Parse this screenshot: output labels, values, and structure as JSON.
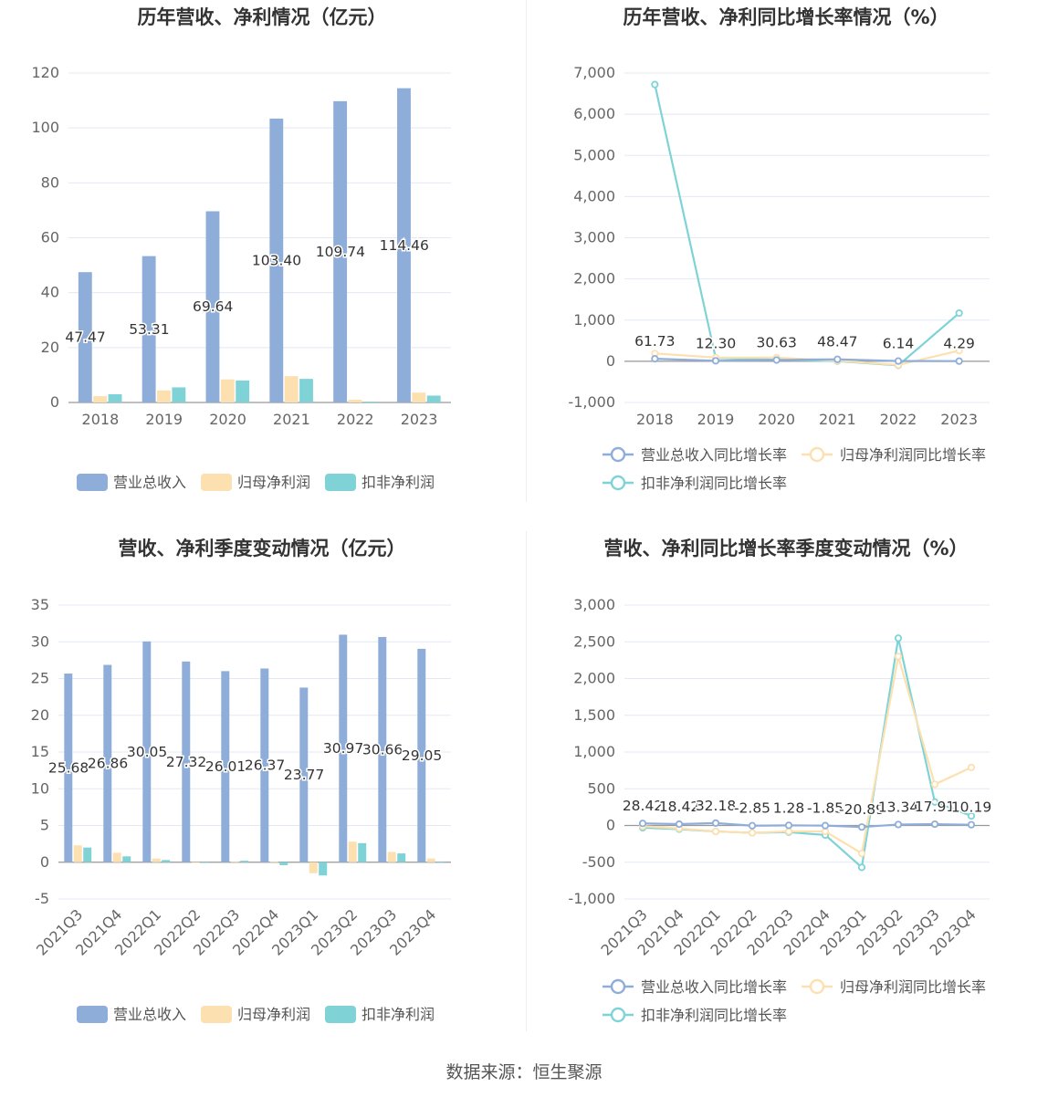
{
  "colors": {
    "revenue": "#8eadd9",
    "net_profit": "#fde0b0",
    "deducted_profit": "#7fd3d6",
    "grid": "#e3e8f3",
    "axis": "#999999"
  },
  "footer": {
    "source": "数据来源：恒生聚源"
  },
  "chart_data": [
    {
      "id": "annual_values",
      "type": "bar",
      "title": "历年营收、净利情况（亿元）",
      "categories": [
        "2018",
        "2019",
        "2020",
        "2021",
        "2022",
        "2023"
      ],
      "series": [
        {
          "name": "营业总收入",
          "values": [
            47.47,
            53.31,
            69.64,
            103.4,
            109.74,
            114.46
          ]
        },
        {
          "name": "归母净利润",
          "values": [
            2.3,
            4.4,
            8.4,
            9.6,
            1.0,
            3.6
          ]
        },
        {
          "name": "扣非净利润",
          "values": [
            3.0,
            5.5,
            8.0,
            8.6,
            0.3,
            2.5
          ]
        }
      ],
      "data_labels": [
        "47.47",
        "53.31",
        "69.64",
        "103.40",
        "109.74",
        "114.46"
      ],
      "ylim": [
        0,
        120
      ],
      "yticks": [
        0,
        20,
        40,
        60,
        80,
        100,
        120
      ],
      "grid": true,
      "legend": "bottom"
    },
    {
      "id": "annual_growth",
      "type": "line",
      "title": "历年营收、净利同比增长率情况（%）",
      "categories": [
        "2018",
        "2019",
        "2020",
        "2021",
        "2022",
        "2023"
      ],
      "series": [
        {
          "name": "营业总收入同比增长率",
          "values": [
            61.73,
            12.3,
            30.63,
            48.47,
            6.14,
            4.29
          ]
        },
        {
          "name": "归母净利润同比增长率",
          "values": [
            190,
            90,
            90,
            15,
            -90,
            260
          ]
        },
        {
          "name": "扣非净利润同比增长率",
          "values": [
            6720,
            80,
            40,
            5,
            -100,
            1170
          ]
        }
      ],
      "data_labels": [
        "61.73",
        "12.30",
        "30.63",
        "48.47",
        "6.14",
        "4.29"
      ],
      "ylim": [
        -1000,
        7000
      ],
      "yticks": [
        -1000,
        0,
        1000,
        2000,
        3000,
        4000,
        5000,
        6000,
        7000
      ],
      "ytick_labels": [
        "-1,000",
        "0",
        "1,000",
        "2,000",
        "3,000",
        "4,000",
        "5,000",
        "6,000",
        "7,000"
      ],
      "grid": true,
      "legend": "bottom"
    },
    {
      "id": "quarterly_values",
      "type": "bar",
      "title": "营收、净利季度变动情况（亿元）",
      "categories": [
        "2021Q3",
        "2021Q4",
        "2022Q1",
        "2022Q2",
        "2022Q3",
        "2022Q4",
        "2023Q1",
        "2023Q2",
        "2023Q3",
        "2023Q4"
      ],
      "series": [
        {
          "name": "营业总收入",
          "values": [
            25.68,
            26.86,
            30.05,
            27.32,
            26.01,
            26.37,
            23.77,
            30.97,
            30.66,
            29.05
          ]
        },
        {
          "name": "归母净利润",
          "values": [
            2.3,
            1.3,
            0.5,
            -0.1,
            0.1,
            0.1,
            -1.5,
            2.8,
            1.4,
            0.5
          ]
        },
        {
          "name": "扣非净利润",
          "values": [
            2.0,
            0.8,
            0.3,
            -0.1,
            0.2,
            -0.4,
            -1.8,
            2.6,
            1.2,
            0.1
          ]
        }
      ],
      "data_labels": [
        "25.68",
        "26.86",
        "30.05",
        "27.32",
        "26.01",
        "26.37",
        "23.77",
        "30.97",
        "30.66",
        "29.05"
      ],
      "ylim": [
        -5,
        35
      ],
      "yticks": [
        -5,
        0,
        5,
        10,
        15,
        20,
        25,
        30,
        35
      ],
      "grid": true,
      "legend": "bottom"
    },
    {
      "id": "quarterly_growth",
      "type": "line",
      "title": "营收、净利同比增长率季度变动情况（%）",
      "categories": [
        "2021Q3",
        "2021Q4",
        "2022Q1",
        "2022Q2",
        "2022Q3",
        "2022Q4",
        "2023Q1",
        "2023Q2",
        "2023Q3",
        "2023Q4"
      ],
      "series": [
        {
          "name": "营业总收入同比增长率",
          "values": [
            28.42,
            18.42,
            32.18,
            -2.85,
            1.28,
            -1.85,
            -20.89,
            13.34,
            17.91,
            10.19
          ]
        },
        {
          "name": "归母净利润同比增长率",
          "values": [
            -10,
            -40,
            -80,
            -100,
            -80,
            -80,
            -380,
            2300,
            560,
            790
          ]
        },
        {
          "name": "扣非净利润同比增长率",
          "values": [
            -30,
            -50,
            -80,
            -100,
            -90,
            -130,
            -570,
            2550,
            320,
            130
          ]
        }
      ],
      "data_labels": [
        "28.42",
        "18.42",
        "32.18",
        "-2.85",
        "1.28",
        "-1.85",
        "-20.89",
        "13.34",
        "17.91",
        "10.19"
      ],
      "ylim": [
        -1000,
        3000
      ],
      "yticks": [
        -1000,
        -500,
        0,
        500,
        1000,
        1500,
        2000,
        2500,
        3000
      ],
      "ytick_labels": [
        "-1,000",
        "-500",
        "0",
        "500",
        "1,000",
        "1,500",
        "2,000",
        "2,500",
        "3,000"
      ],
      "grid": true,
      "legend": "bottom"
    }
  ]
}
